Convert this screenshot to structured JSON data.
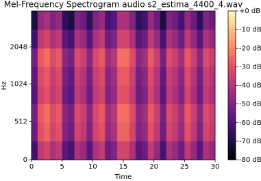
{
  "chart_data": {
    "type": "heatmap",
    "title": "Mel-Frequency Spectrogram audio s2_estima_4400_4.wav",
    "x_label": "Time",
    "y_label": "Hz",
    "xlim": [
      0,
      30
    ],
    "xticks": [
      0,
      5,
      10,
      15,
      20,
      25,
      30
    ],
    "ylim": [
      0,
      4000
    ],
    "yscale": "symlog",
    "linthresh": 1000,
    "log_base": 2,
    "yticks": [
      0,
      512,
      1024,
      2048
    ],
    "colormap": "magma",
    "clim": [
      -80,
      0
    ],
    "cticks": [
      {
        "value": 0,
        "label": "+0 dB"
      },
      {
        "value": -10,
        "label": "-10 dB"
      },
      {
        "value": -20,
        "label": "-20 dB"
      },
      {
        "value": -30,
        "label": "-30 dB"
      },
      {
        "value": -40,
        "label": "-40 dB"
      },
      {
        "value": -50,
        "label": "-50 dB"
      },
      {
        "value": -60,
        "label": "-60 dB"
      },
      {
        "value": -70,
        "label": "-70 dB"
      },
      {
        "value": -80,
        "label": "-80 dB"
      }
    ],
    "z": [
      [
        -62,
        -38,
        -34,
        -42,
        -38,
        -58,
        -62,
        -42,
        -46,
        -58,
        -42,
        -38,
        -54,
        -50,
        -34,
        -34,
        -42,
        -58,
        -54,
        -38,
        -46,
        -62,
        -42,
        -46,
        -54,
        -38,
        -46,
        -58,
        -42,
        -46
      ],
      [
        -54,
        -30,
        -26,
        -34,
        -30,
        -50,
        -54,
        -34,
        -38,
        -50,
        -34,
        -30,
        -46,
        -42,
        -26,
        -26,
        -34,
        -50,
        -46,
        -30,
        -38,
        -54,
        -34,
        -38,
        -46,
        -30,
        -38,
        -50,
        -34,
        -38
      ],
      [
        -52,
        -28,
        -24,
        -32,
        -28,
        -48,
        -52,
        -32,
        -36,
        -48,
        -32,
        -28,
        -44,
        -40,
        -24,
        -24,
        -32,
        -48,
        -44,
        -28,
        -36,
        -52,
        -32,
        -36,
        -44,
        -28,
        -36,
        -48,
        -32,
        -36
      ],
      [
        -58,
        -34,
        -30,
        -38,
        -34,
        -54,
        -58,
        -38,
        -42,
        -54,
        -38,
        -34,
        -50,
        -46,
        -30,
        -30,
        -38,
        -54,
        -50,
        -34,
        -42,
        -58,
        -38,
        -42,
        -50,
        -34,
        -42,
        -54,
        -38,
        -42
      ],
      [
        -56,
        -32,
        -28,
        -36,
        -32,
        -52,
        -56,
        -36,
        -40,
        -52,
        -36,
        -32,
        -48,
        -44,
        -28,
        -28,
        -36,
        -52,
        -48,
        -32,
        -40,
        -56,
        -36,
        -40,
        -48,
        -32,
        -40,
        -52,
        -36,
        -40
      ],
      [
        -52,
        -28,
        -24,
        -32,
        -28,
        -48,
        -52,
        -32,
        -36,
        -48,
        -32,
        -28,
        -44,
        -40,
        -24,
        -24,
        -32,
        -48,
        -44,
        -28,
        -36,
        -52,
        -32,
        -36,
        -44,
        -28,
        -36,
        -48,
        -32,
        -36
      ],
      [
        -62,
        -38,
        -34,
        -42,
        -38,
        -58,
        -62,
        -42,
        -46,
        -58,
        -42,
        -38,
        -54,
        -50,
        -34,
        -34,
        -42,
        -58,
        -54,
        -38,
        -46,
        -62,
        -42,
        -46,
        -54,
        -38,
        -46,
        -58,
        -42,
        -46
      ],
      [
        -70,
        -46,
        -42,
        -50,
        -46,
        -66,
        -70,
        -50,
        -54,
        -66,
        -50,
        -46,
        -62,
        -58,
        -42,
        -42,
        -50,
        -66,
        -62,
        -46,
        -54,
        -70,
        -50,
        -54,
        -62,
        -46,
        -54,
        -66,
        -50,
        -54
      ]
    ]
  }
}
